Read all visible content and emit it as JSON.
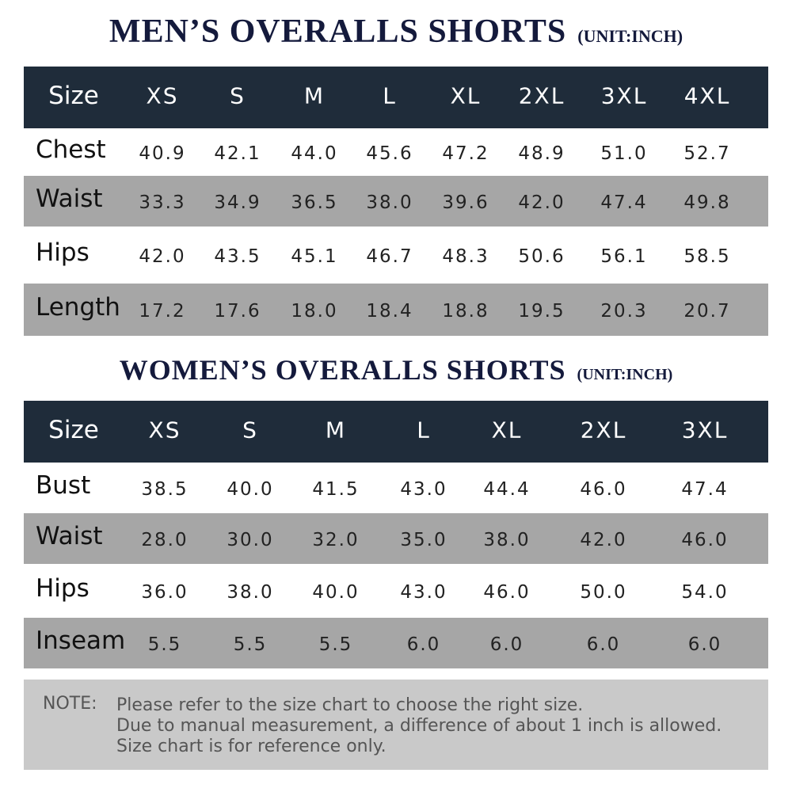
{
  "men": {
    "title": "MEN’S OVERALLS SHORTS",
    "unit": "(UNIT:INCH)",
    "header": [
      "Size",
      "XS",
      "S",
      "M",
      "L",
      "XL",
      "2XL",
      "3XL",
      "4XL"
    ],
    "rows": [
      [
        "Chest",
        "40.9",
        "42.1",
        "44.0",
        "45.6",
        "47.2",
        "48.9",
        "51.0",
        "52.7"
      ],
      [
        "Waist",
        "33.3",
        "34.9",
        "36.5",
        "38.0",
        "39.6",
        "42.0",
        "47.4",
        "49.8"
      ],
      [
        "Hips",
        "42.0",
        "43.5",
        "45.1",
        "46.7",
        "48.3",
        "50.6",
        "56.1",
        "58.5"
      ],
      [
        "Length",
        "17.2",
        "17.6",
        "18.0",
        "18.4",
        "18.8",
        "19.5",
        "20.3",
        "20.7"
      ]
    ]
  },
  "women": {
    "title": "WOMEN’S OVERALLS SHORTS",
    "unit": "(UNIT:INCH)",
    "header": [
      "Size",
      "XS",
      "S",
      "M",
      "L",
      "XL",
      "2XL",
      "3XL"
    ],
    "rows": [
      [
        "Bust",
        "38.5",
        "40.0",
        "41.5",
        "43.0",
        "44.4",
        "46.0",
        "47.4"
      ],
      [
        "Waist",
        "28.0",
        "30.0",
        "32.0",
        "35.0",
        "38.0",
        "42.0",
        "46.0"
      ],
      [
        "Hips",
        "36.0",
        "38.0",
        "40.0",
        "43.0",
        "46.0",
        "50.0",
        "54.0"
      ],
      [
        "Inseam",
        "5.5",
        "5.5",
        "5.5",
        "6.0",
        "6.0",
        "6.0",
        "6.0"
      ]
    ]
  },
  "note": {
    "label": "NOTE:",
    "lines": [
      "Please refer to the size chart to choose the right size.",
      "Due to manual measurement, a difference of about 1 inch is allowed.",
      "Size chart is for reference only."
    ]
  }
}
